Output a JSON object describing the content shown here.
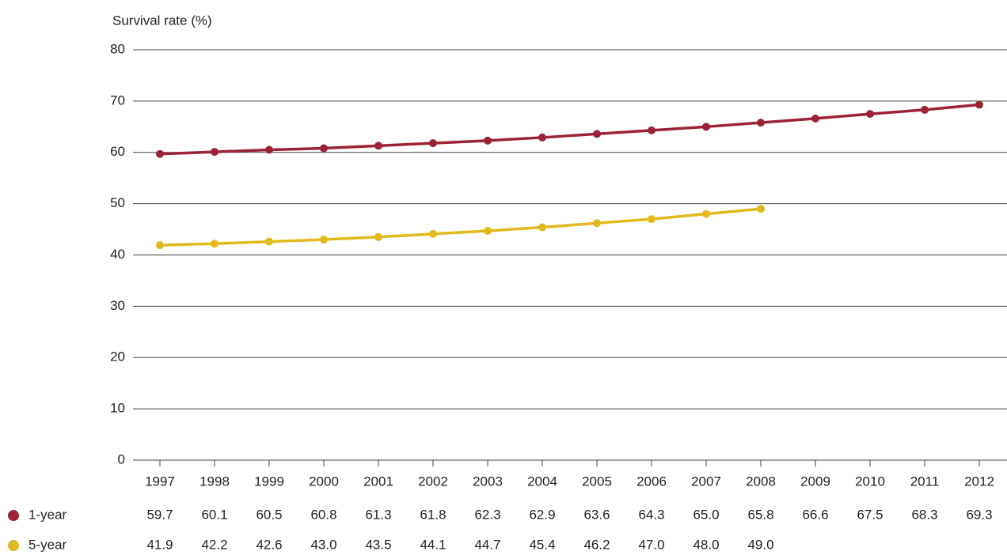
{
  "chart_data": {
    "type": "line",
    "y_axis_label": "Survival rate (%)",
    "categories": [
      "1997",
      "1998",
      "1999",
      "2000",
      "2001",
      "2002",
      "2003",
      "2004",
      "2005",
      "2006",
      "2007",
      "2008",
      "2009",
      "2010",
      "2011",
      "2012"
    ],
    "series": [
      {
        "name": "1-year",
        "color": "#9b2335",
        "values": [
          59.7,
          60.1,
          60.5,
          60.8,
          61.3,
          61.8,
          62.3,
          62.9,
          63.6,
          64.3,
          65.0,
          65.8,
          66.6,
          67.5,
          68.3,
          69.3
        ],
        "value_labels": [
          "59.7",
          "60.1",
          "60.5",
          "60.8",
          "61.3",
          "61.8",
          "62.3",
          "62.9",
          "63.6",
          "64.3",
          "65.0",
          "65.8",
          "66.6",
          "67.5",
          "68.3",
          "69.3"
        ]
      },
      {
        "name": "5-year",
        "color": "#e1b91c",
        "values": [
          41.9,
          42.2,
          42.6,
          43.0,
          43.5,
          44.1,
          44.7,
          45.4,
          46.2,
          47.0,
          48.0,
          49.0,
          null,
          null,
          null,
          null
        ],
        "value_labels": [
          "41.9",
          "42.2",
          "42.6",
          "43.0",
          "43.5",
          "44.1",
          "44.7",
          "45.4",
          "46.2",
          "47.0",
          "48.0",
          "49.0",
          null,
          null,
          null,
          null
        ]
      }
    ],
    "ylim": [
      0,
      80
    ],
    "yticks": [
      0,
      10,
      20,
      30,
      40,
      50,
      60,
      70,
      80
    ],
    "grid": true
  }
}
